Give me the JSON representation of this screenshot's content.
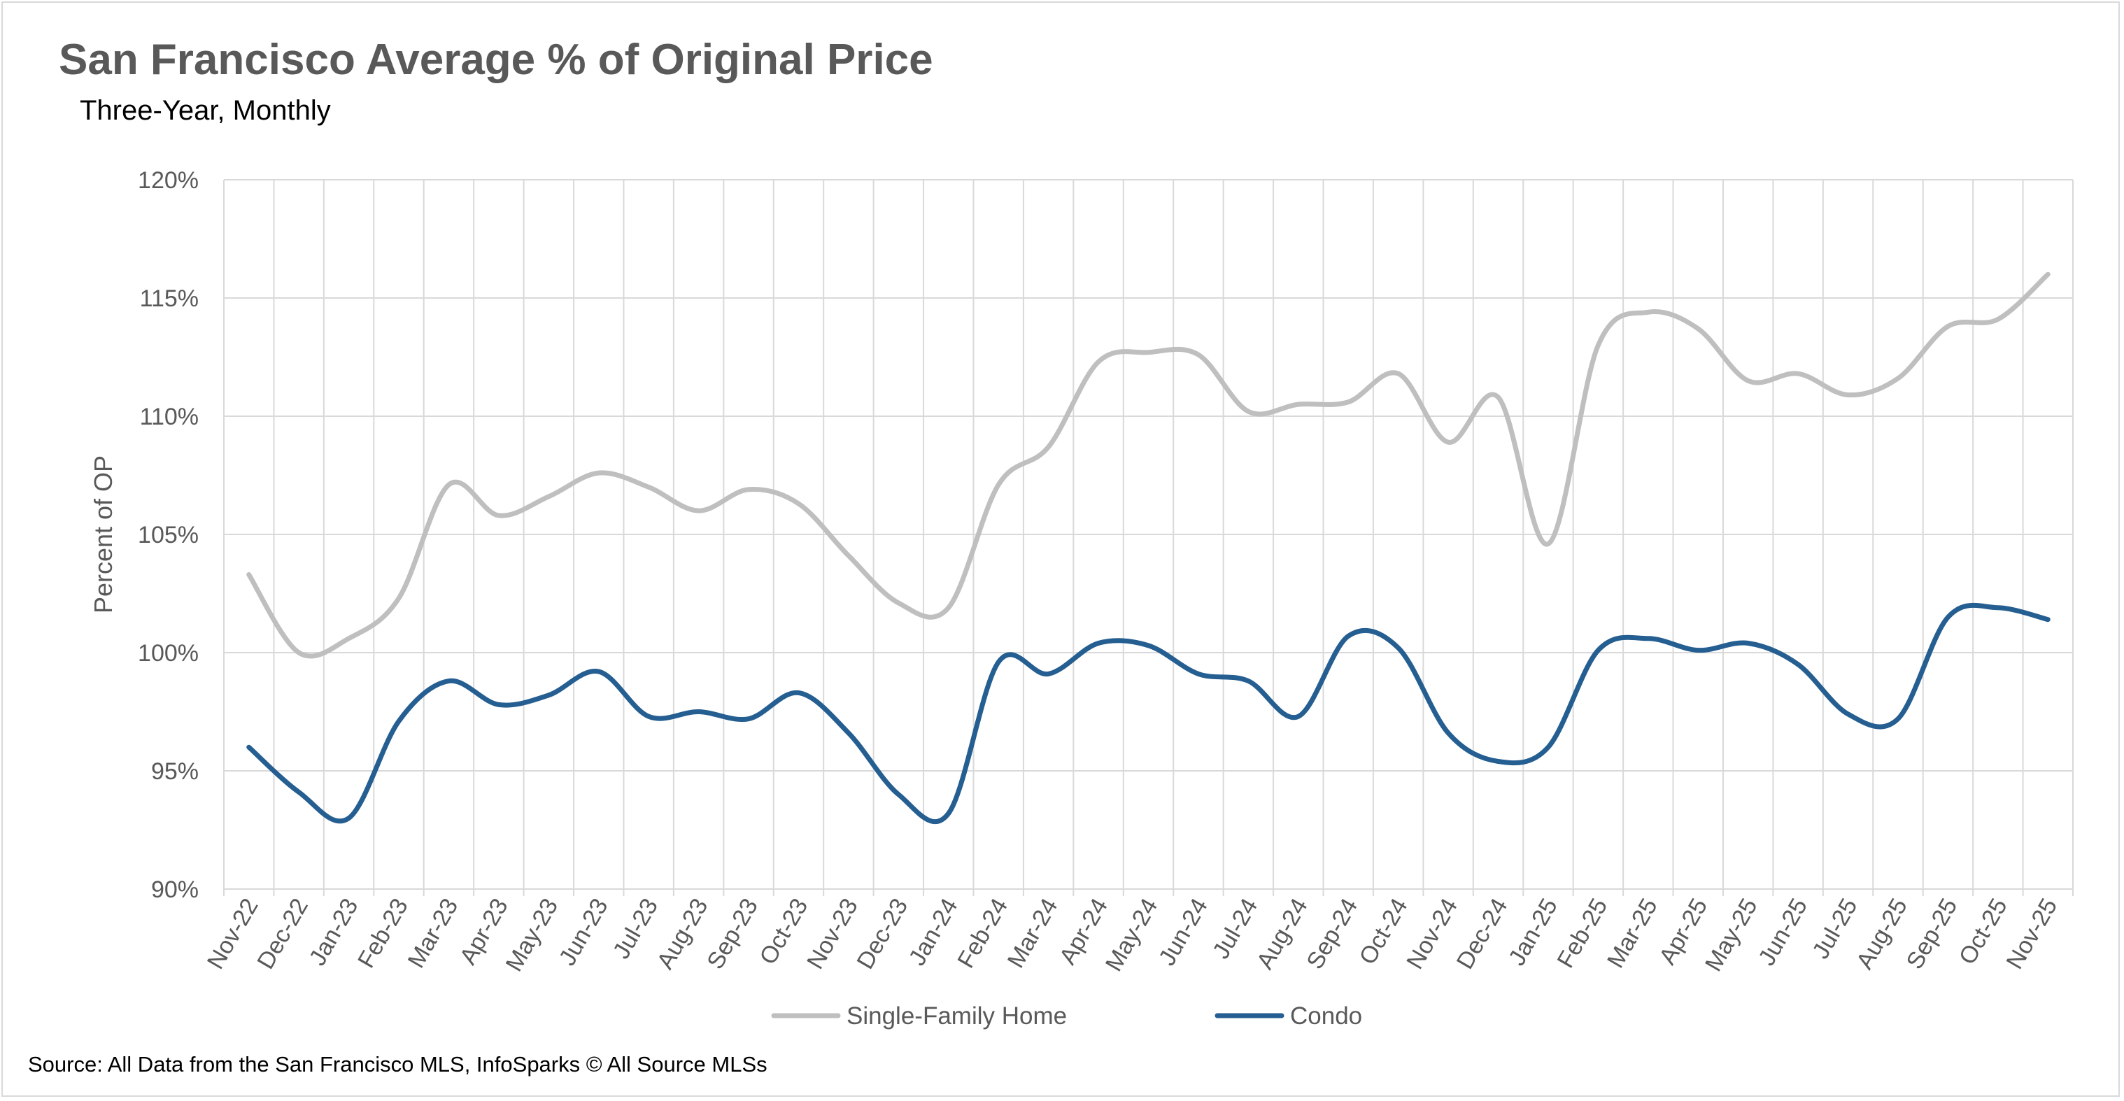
{
  "header": {
    "title": "San Francisco Average % of Original Price",
    "subtitle": "Three-Year, Monthly"
  },
  "footer": {
    "source": "Source: All Data from the San Francisco MLS, InfoSparks © All Source MLSs"
  },
  "colors": {
    "single_family": "#bfbfbf",
    "condo": "#255e91",
    "grid": "#d9d9d9",
    "text": "#595959"
  },
  "chart_data": {
    "type": "line",
    "title": "San Francisco Average % of Original Price",
    "subtitle": "Three-Year, Monthly",
    "xlabel": "",
    "ylabel": "Percent of OP",
    "ylim": [
      90,
      120
    ],
    "yticks": [
      90,
      95,
      100,
      105,
      110,
      115,
      120
    ],
    "ytick_labels": [
      "90%",
      "95%",
      "100%",
      "105%",
      "110%",
      "115%",
      "120%"
    ],
    "grid": true,
    "smooth": true,
    "legend_position": "bottom",
    "categories": [
      "Nov-22",
      "Dec-22",
      "Jan-23",
      "Feb-23",
      "Mar-23",
      "Apr-23",
      "May-23",
      "Jun-23",
      "Jul-23",
      "Aug-23",
      "Sep-23",
      "Oct-23",
      "Nov-23",
      "Dec-23",
      "Jan-24",
      "Feb-24",
      "Mar-24",
      "Apr-24",
      "May-24",
      "Jun-24",
      "Jul-24",
      "Aug-24",
      "Sep-24",
      "Oct-24",
      "Nov-24",
      "Dec-24",
      "Jan-25",
      "Feb-25",
      "Mar-25",
      "Apr-25",
      "May-25",
      "Jun-25",
      "Jul-25",
      "Aug-25",
      "Sep-25",
      "Oct-25",
      "Nov-25"
    ],
    "series": [
      {
        "name": "Single-Family Home",
        "values": [
          103.3,
          100.0,
          100.6,
          102.3,
          107.1,
          105.8,
          106.6,
          107.6,
          107.0,
          106.0,
          106.9,
          106.3,
          104.1,
          102.1,
          101.9,
          107.1,
          108.7,
          112.3,
          112.7,
          112.6,
          110.2,
          110.5,
          110.6,
          111.8,
          108.9,
          110.8,
          104.6,
          113.0,
          114.4,
          113.7,
          111.5,
          111.8,
          110.9,
          111.6,
          113.8,
          114.1,
          116.0
        ]
      },
      {
        "name": "Condo",
        "values": [
          96.0,
          94.1,
          93.0,
          97.1,
          98.8,
          97.8,
          98.2,
          99.2,
          97.3,
          97.5,
          97.2,
          98.3,
          96.6,
          94.0,
          93.2,
          99.6,
          99.1,
          100.4,
          100.3,
          99.1,
          98.8,
          97.3,
          100.7,
          100.2,
          96.6,
          95.4,
          96.0,
          100.1,
          100.6,
          100.1,
          100.4,
          99.5,
          97.4,
          97.2,
          101.5,
          101.9,
          101.4
        ]
      }
    ]
  }
}
